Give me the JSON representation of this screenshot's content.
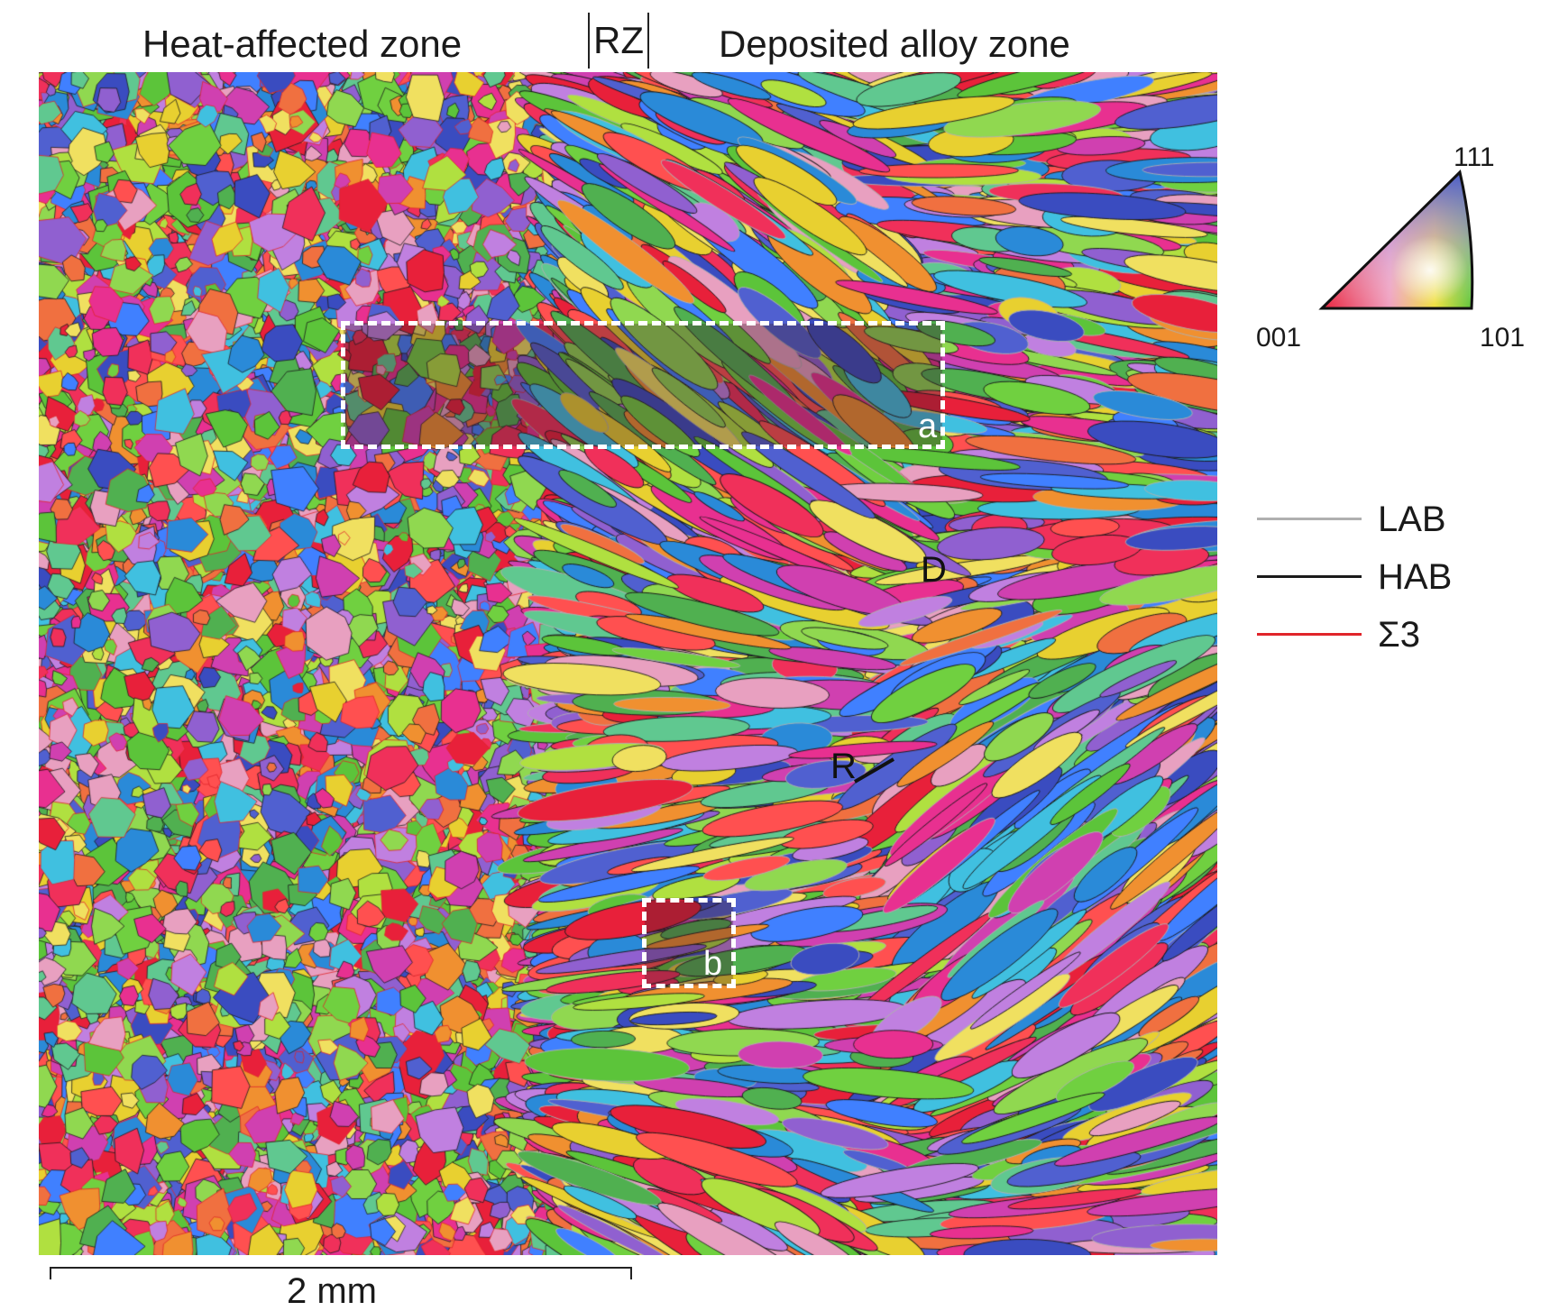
{
  "zones": {
    "heat_affected": "Heat-affected zone",
    "rz": "RZ",
    "deposited": "Deposited alloy zone"
  },
  "rois": [
    {
      "letter": "a"
    },
    {
      "letter": "b"
    }
  ],
  "annotations": {
    "d": "D",
    "r": "R"
  },
  "scale_bar": {
    "label": "2 mm"
  },
  "ipf_key": {
    "corner_001": "001",
    "corner_101": "101",
    "corner_111": "111",
    "colors": {
      "001": "#e8203a",
      "101": "#5cc43a",
      "111": "#4a5cc8"
    }
  },
  "legend": [
    {
      "label": "LAB",
      "color": "#b0b0b0"
    },
    {
      "label": "HAB",
      "color": "#1a1a1a"
    },
    {
      "label": "Σ3",
      "color": "#e0242a"
    }
  ]
}
